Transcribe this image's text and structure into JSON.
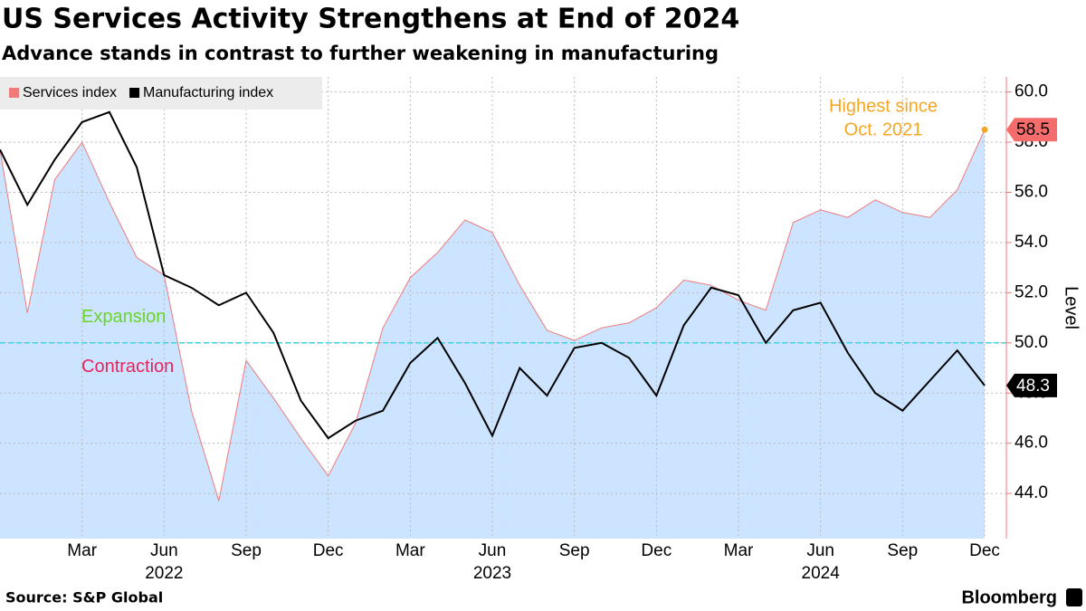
{
  "chart_data": {
    "type": "line",
    "title": "US Services Activity Strengthens at End of 2024",
    "subtitle": "Advance stands in contrast to further weakening in manufacturing",
    "y_axis_label": "Level",
    "source": "Source: S&P Global",
    "brand": "Bloomberg",
    "categories": [
      null,
      null,
      null,
      "Mar",
      null,
      null,
      "Jun",
      null,
      null,
      "Sep",
      null,
      null,
      "Dec",
      null,
      null,
      "Mar",
      null,
      null,
      "Jun",
      null,
      null,
      "Sep",
      null,
      null,
      "Dec",
      null,
      null,
      "Mar",
      null,
      null,
      "Jun",
      null,
      null,
      "Sep",
      null,
      null,
      "Dec"
    ],
    "year_labels": [
      "2022",
      "2023",
      "2024"
    ],
    "series": [
      {
        "name": "Services index",
        "color": "#f07a7a",
        "fill": "#cce4ff",
        "area": true,
        "label_box": "#f46c6c",
        "values": [
          57.7,
          51.2,
          56.5,
          58.0,
          55.6,
          53.4,
          52.7,
          47.3,
          43.7,
          49.3,
          47.8,
          46.2,
          44.7,
          46.8,
          50.6,
          52.6,
          53.6,
          54.9,
          54.4,
          52.3,
          50.5,
          50.1,
          50.6,
          50.8,
          51.4,
          52.5,
          52.3,
          51.7,
          51.3,
          54.8,
          55.3,
          55.0,
          55.7,
          55.2,
          55.0,
          56.1,
          58.5
        ]
      },
      {
        "name": "Manufacturing index",
        "color": "#000000",
        "area": false,
        "label_box": "#000000",
        "values": [
          57.7,
          55.5,
          57.3,
          58.8,
          59.2,
          57.0,
          52.7,
          52.2,
          51.5,
          52.0,
          50.4,
          47.7,
          46.2,
          46.9,
          47.3,
          49.2,
          50.2,
          48.4,
          46.3,
          49.0,
          47.9,
          49.8,
          50.0,
          49.4,
          47.9,
          50.7,
          52.2,
          51.9,
          50.0,
          51.3,
          51.6,
          49.6,
          48.0,
          47.3,
          48.5,
          49.7,
          48.3
        ]
      }
    ],
    "ylim": [
      42.2,
      60.6
    ],
    "yticks": [
      {
        "value": 44,
        "label": "44.0"
      },
      {
        "value": 46,
        "label": "46.0"
      },
      {
        "value": 48,
        "label": "48.0"
      },
      {
        "value": 50,
        "label": "50.0"
      },
      {
        "value": 52,
        "label": "52.0"
      },
      {
        "value": 54,
        "label": "54.0"
      },
      {
        "value": 56,
        "label": "56.0"
      },
      {
        "value": 58,
        "label": "58.0"
      },
      {
        "value": 60,
        "label": "60.0"
      }
    ],
    "threshold": {
      "value": 50,
      "color": "#3fd4e0",
      "above": "Expansion",
      "above_color": "#6bd42a",
      "below": "Contraction",
      "below_color": "#e8245a"
    },
    "annotation": {
      "lines": [
        "Highest since",
        "Oct. 2021"
      ],
      "color": "#f5a623"
    },
    "grid": true,
    "legend": "upper left"
  }
}
